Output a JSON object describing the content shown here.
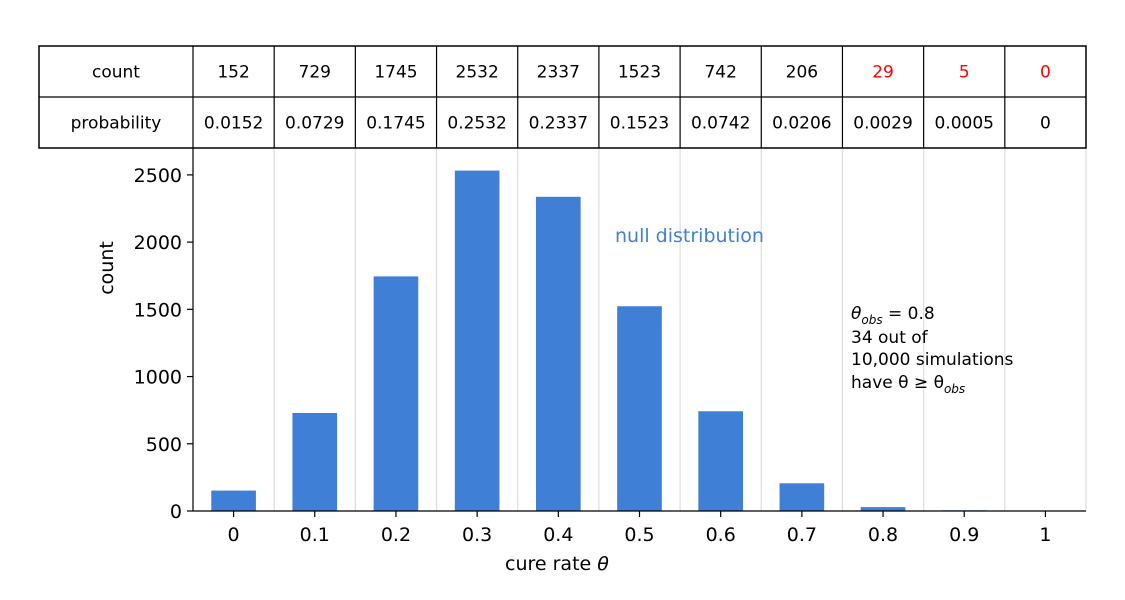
{
  "chart_data": {
    "type": "bar",
    "categories": [
      "0",
      "0.1",
      "0.2",
      "0.3",
      "0.4",
      "0.5",
      "0.6",
      "0.7",
      "0.8",
      "0.9",
      "1"
    ],
    "x": [
      0,
      0.1,
      0.2,
      0.3,
      0.4,
      0.5,
      0.6,
      0.7,
      0.8,
      0.9,
      1.0
    ],
    "values": [
      152,
      729,
      1745,
      2532,
      2337,
      1523,
      742,
      206,
      29,
      5,
      0
    ],
    "xlabel": "cure rate θ",
    "ylabel": "count",
    "ylim": [
      0,
      2700
    ],
    "yticks": [
      0,
      500,
      1000,
      1500,
      2000,
      2500
    ],
    "ytick_labels": [
      "0",
      "500",
      "1000",
      "1500",
      "2000",
      "2500"
    ],
    "grid": "vertical",
    "bar_color": "#3f7fd6",
    "highlight_color": "#ff0000",
    "series_label": "null distribution",
    "table": {
      "row_labels": [
        "count",
        "probability"
      ],
      "count": [
        "152",
        "729",
        "1745",
        "2532",
        "2337",
        "1523",
        "742",
        "206",
        "29",
        "5",
        "0"
      ],
      "probability": [
        "0.0152",
        "0.0729",
        "0.1745",
        "0.2532",
        "0.2337",
        "0.1523",
        "0.0742",
        "0.0206",
        "0.0029",
        "0.0005",
        "0"
      ],
      "highlighted_count_columns": [
        8,
        9,
        10
      ]
    },
    "annotation": {
      "line1_prefix": "θ",
      "line1_sub": "obs",
      "line1_suffix": " = 0.8",
      "line2": "34 out of",
      "line3": "10,000 simulations",
      "line4_prefix": "have θ ≥ θ",
      "line4_sub": "obs"
    }
  }
}
